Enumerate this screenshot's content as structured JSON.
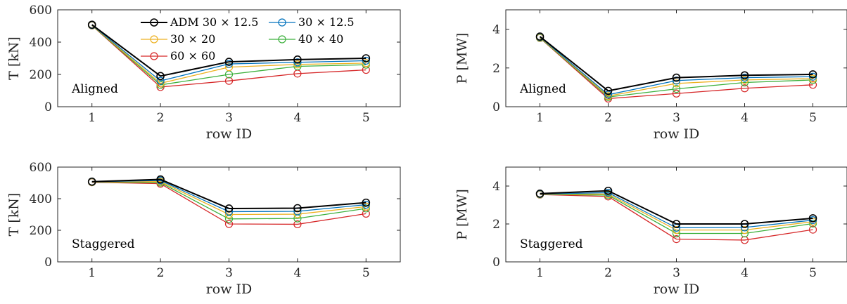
{
  "chart_data": [
    {
      "type": "line",
      "panel": "top-left",
      "xlabel": "row ID",
      "ylabel": "T [kN]",
      "annotation": "Aligned",
      "x": [
        1,
        2,
        3,
        4,
        5
      ],
      "xlim": [
        0.5,
        5.5
      ],
      "ylim": [
        0,
        600
      ],
      "xticks": [
        "1",
        "2",
        "3",
        "4",
        "5"
      ],
      "yticks": [
        "0",
        "200",
        "400",
        "600"
      ],
      "legend_position": "top (inside)",
      "series": [
        {
          "name": "ADM 30 × 12.5",
          "color": "#000000",
          "values": [
            508,
            190,
            278,
            292,
            300
          ]
        },
        {
          "name": "30 × 12.5",
          "color": "#0072BD",
          "values": [
            506,
            160,
            265,
            275,
            285
          ]
        },
        {
          "name": "30 × 20",
          "color": "#EDB120",
          "values": [
            505,
            145,
            245,
            262,
            270
          ]
        },
        {
          "name": "40 × 40",
          "color": "#3CB03C",
          "values": [
            504,
            135,
            200,
            250,
            260
          ]
        },
        {
          "name": "60 × 60",
          "color": "#D62728",
          "values": [
            503,
            122,
            160,
            205,
            228
          ]
        }
      ]
    },
    {
      "type": "line",
      "panel": "top-right",
      "xlabel": "row ID",
      "ylabel": "P [MW]",
      "annotation": "Aligned",
      "x": [
        1,
        2,
        3,
        4,
        5
      ],
      "xlim": [
        0.5,
        5.5
      ],
      "ylim": [
        0,
        5
      ],
      "xticks": [
        "1",
        "2",
        "3",
        "4",
        "5"
      ],
      "yticks": [
        "0",
        "2",
        "4"
      ],
      "series": [
        {
          "color": "#000000",
          "values": [
            3.62,
            0.82,
            1.5,
            1.62,
            1.67
          ]
        },
        {
          "color": "#0072BD",
          "values": [
            3.6,
            0.62,
            1.35,
            1.5,
            1.55
          ]
        },
        {
          "color": "#EDB120",
          "values": [
            3.58,
            0.55,
            1.2,
            1.38,
            1.45
          ]
        },
        {
          "color": "#3CB03C",
          "values": [
            3.56,
            0.5,
            0.92,
            1.25,
            1.38
          ]
        },
        {
          "color": "#D62728",
          "values": [
            3.55,
            0.42,
            0.68,
            0.95,
            1.13
          ]
        }
      ]
    },
    {
      "type": "line",
      "panel": "bottom-left",
      "xlabel": "row ID",
      "ylabel": "T [kN]",
      "annotation": "Staggered",
      "x": [
        1,
        2,
        3,
        4,
        5
      ],
      "xlim": [
        0.5,
        5.5
      ],
      "ylim": [
        0,
        600
      ],
      "xticks": [
        "1",
        "2",
        "3",
        "4",
        "5"
      ],
      "yticks": [
        "0",
        "200",
        "400",
        "600"
      ],
      "series": [
        {
          "color": "#000000",
          "values": [
            508,
            522,
            338,
            340,
            375
          ]
        },
        {
          "color": "#0072BD",
          "values": [
            507,
            515,
            318,
            320,
            362
          ]
        },
        {
          "color": "#EDB120",
          "values": [
            506,
            508,
            300,
            302,
            350
          ]
        },
        {
          "color": "#3CB03C",
          "values": [
            505,
            502,
            272,
            275,
            338
          ]
        },
        {
          "color": "#D62728",
          "values": [
            504,
            495,
            240,
            238,
            305
          ]
        }
      ]
    },
    {
      "type": "line",
      "panel": "bottom-right",
      "xlabel": "row ID",
      "ylabel": "P [MW]",
      "annotation": "Staggered",
      "x": [
        1,
        2,
        3,
        4,
        5
      ],
      "xlim": [
        0.5,
        5.5
      ],
      "ylim": [
        0,
        5
      ],
      "xticks": [
        "1",
        "2",
        "3",
        "4",
        "5"
      ],
      "yticks": [
        "0",
        "2",
        "4"
      ],
      "series": [
        {
          "color": "#000000",
          "values": [
            3.6,
            3.75,
            2.0,
            2.0,
            2.3
          ]
        },
        {
          "color": "#0072BD",
          "values": [
            3.58,
            3.65,
            1.8,
            1.82,
            2.2
          ]
        },
        {
          "color": "#EDB120",
          "values": [
            3.57,
            3.58,
            1.68,
            1.68,
            2.12
          ]
        },
        {
          "color": "#3CB03C",
          "values": [
            3.56,
            3.52,
            1.5,
            1.5,
            2.02
          ]
        },
        {
          "color": "#D62728",
          "values": [
            3.55,
            3.45,
            1.2,
            1.15,
            1.7
          ]
        }
      ]
    }
  ]
}
